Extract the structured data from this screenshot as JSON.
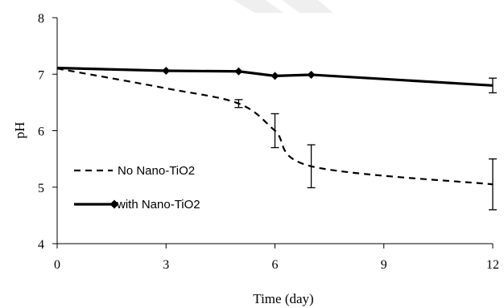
{
  "chart_data": {
    "type": "line",
    "title": "",
    "xlabel": "Time (day)",
    "ylabel": "pH",
    "xlim": [
      0,
      12
    ],
    "ylim": [
      4,
      8
    ],
    "x_ticks": [
      0,
      3,
      6,
      9,
      12
    ],
    "y_ticks": [
      4,
      5,
      6,
      7,
      8
    ],
    "x_tick_labels": [
      "0",
      "3",
      "6",
      "9",
      "12"
    ],
    "y_tick_labels": [
      "4",
      "5",
      "6",
      "7",
      "8"
    ],
    "grid": false,
    "legend_position": "bottom-left",
    "series": [
      {
        "name": "No Nano-TiO2",
        "style": "dashed",
        "marker": "none",
        "color": "#000000",
        "x": [
          0,
          3,
          5,
          6,
          7,
          12
        ],
        "y": [
          7.1,
          6.75,
          6.48,
          6.0,
          5.37,
          5.05
        ],
        "error": [
          0,
          0,
          0.07,
          0.3,
          0.38,
          0.45
        ]
      },
      {
        "name": "with Nano-TiO2",
        "style": "solid",
        "marker": "diamond",
        "color": "#000000",
        "x": [
          0,
          3,
          5,
          6,
          7,
          12
        ],
        "y": [
          7.11,
          7.06,
          7.05,
          6.97,
          6.99,
          6.8
        ],
        "error": [
          0,
          0,
          0,
          0,
          0,
          0.13
        ]
      }
    ]
  }
}
